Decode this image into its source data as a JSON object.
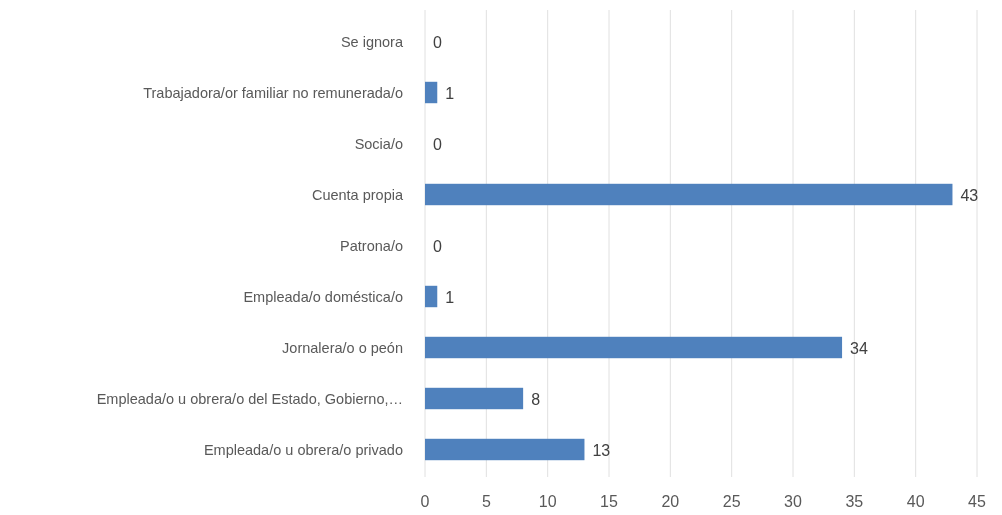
{
  "chart_data": {
    "type": "bar",
    "orientation": "horizontal",
    "categories": [
      "Se ignora",
      "Trabajadora/or familiar no remunerada/o",
      "Socia/o",
      "Cuenta propia",
      "Patrona/o",
      "Empleada/o doméstica/o",
      "Jornalera/o o peón",
      "Empleada/o u obrera/o del Estado, Gobierno,…",
      "Empleada/o u obrera/o privado"
    ],
    "values": [
      0,
      1,
      0,
      43,
      0,
      1,
      34,
      8,
      13
    ],
    "color": "#4f81bd",
    "xlim": [
      0,
      45
    ],
    "xticks": [
      0,
      5,
      10,
      15,
      20,
      25,
      30,
      35,
      40,
      45
    ],
    "grid": "x",
    "data_labels": true
  }
}
